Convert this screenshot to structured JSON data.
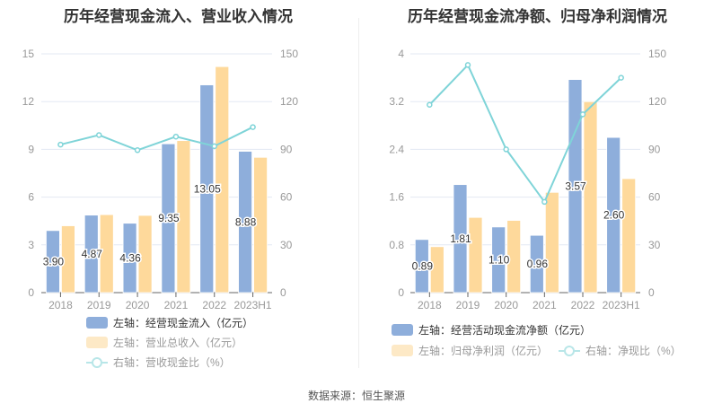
{
  "source": "数据来源：恒生聚源",
  "colors": {
    "bar1": "#8eaedb",
    "bar2": "#fed99b",
    "line": "#7fd4d8",
    "grid": "#e3e8f3",
    "axis": "#999",
    "label": "#333"
  },
  "chart_data": [
    {
      "type": "bar",
      "title": "历年经营现金流入、营业收入情况",
      "categories": [
        "2018",
        "2019",
        "2020",
        "2021",
        "2022",
        "2023H1"
      ],
      "ylim_left": [
        0,
        15
      ],
      "yticks_left": [
        "0",
        "3",
        "6",
        "9",
        "12",
        "15"
      ],
      "ylim_right": [
        0,
        150
      ],
      "yticks_right": [
        "0",
        "30",
        "60",
        "90",
        "120",
        "150"
      ],
      "series": [
        {
          "name": "左轴：经营现金流入（亿元）",
          "kind": "bar",
          "axis": "left",
          "values": [
            3.9,
            4.87,
            4.36,
            9.35,
            13.05,
            8.88
          ],
          "labels": [
            "3.90",
            "4.87",
            "4.36",
            "9.35",
            "13.05",
            "8.88"
          ]
        },
        {
          "name": "左轴：营业总收入（亿元）",
          "kind": "bar",
          "axis": "left",
          "values": [
            4.2,
            4.9,
            4.85,
            9.55,
            14.2,
            8.5
          ]
        },
        {
          "name": "右轴：营收现金比（%）",
          "kind": "line",
          "axis": "right",
          "values": [
            93,
            99,
            89.5,
            98,
            92,
            104
          ]
        }
      ]
    },
    {
      "type": "bar",
      "title": "历年经营现金流净额、归母净利润情况",
      "categories": [
        "2018",
        "2019",
        "2020",
        "2021",
        "2022",
        "2023H1"
      ],
      "ylim_left": [
        0,
        4
      ],
      "yticks_left": [
        "0",
        "0.8",
        "1.6",
        "2.4",
        "3.2",
        "4"
      ],
      "ylim_right": [
        0,
        150
      ],
      "yticks_right": [
        "0",
        "30",
        "60",
        "90",
        "120",
        "150"
      ],
      "series": [
        {
          "name": "左轴：经营活动现金流净额（亿元）",
          "kind": "bar",
          "axis": "left",
          "values": [
            0.89,
            1.81,
            1.1,
            0.96,
            3.57,
            2.6
          ],
          "labels": [
            "0.89",
            "1.81",
            "1.10",
            "0.96",
            "3.57",
            "2.60"
          ]
        },
        {
          "name": "左轴：归母净利润（亿元）",
          "kind": "bar",
          "axis": "left",
          "values": [
            0.77,
            1.26,
            1.21,
            1.68,
            3.2,
            1.91
          ]
        },
        {
          "name": "右轴：净现比（%）",
          "kind": "line",
          "axis": "right",
          "values": [
            118,
            143,
            90,
            57,
            112,
            135
          ]
        }
      ]
    }
  ]
}
